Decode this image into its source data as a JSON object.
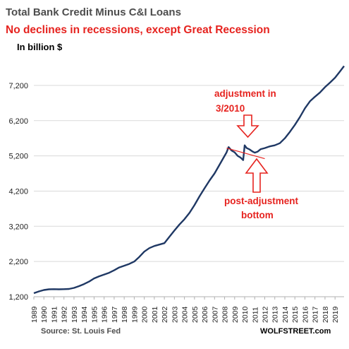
{
  "chart_data": {
    "type": "line",
    "title": "Total Bank Credit Minus C&I Loans",
    "subtitle": "No declines in recessions, except Great Recession",
    "units": "In billion $",
    "xlabel": "",
    "ylabel": "",
    "x_ticks": [
      "1989",
      "1990",
      "1991",
      "1992",
      "1993",
      "1994",
      "1995",
      "1996",
      "1997",
      "1998",
      "1999",
      "2000",
      "2001",
      "2002",
      "2003",
      "2004",
      "2005",
      "2006",
      "2007",
      "2008",
      "2009",
      "2010",
      "2011",
      "2012",
      "2013",
      "2014",
      "2015",
      "2016",
      "2017",
      "2018",
      "2019"
    ],
    "y_ticks": [
      1200,
      2200,
      3200,
      4200,
      5200,
      6200,
      7200
    ],
    "y_tick_labels": [
      "1,200",
      "2,200",
      "3,200",
      "4,200",
      "5,200",
      "6,200",
      "7,200"
    ],
    "ylim": [
      1200,
      7700
    ],
    "xlim": [
      1989,
      2019.9
    ],
    "grid": "horizontal",
    "series": [
      {
        "color": "#1f3864",
        "points": [
          [
            1989.0,
            1300
          ],
          [
            1989.5,
            1350
          ],
          [
            1990.0,
            1390
          ],
          [
            1990.5,
            1410
          ],
          [
            1991.0,
            1415
          ],
          [
            1991.5,
            1410
          ],
          [
            1992.0,
            1415
          ],
          [
            1992.5,
            1420
          ],
          [
            1993.0,
            1450
          ],
          [
            1993.5,
            1500
          ],
          [
            1994.0,
            1560
          ],
          [
            1994.5,
            1630
          ],
          [
            1995.0,
            1720
          ],
          [
            1995.5,
            1780
          ],
          [
            1996.0,
            1830
          ],
          [
            1996.5,
            1880
          ],
          [
            1997.0,
            1950
          ],
          [
            1997.5,
            2030
          ],
          [
            1998.0,
            2080
          ],
          [
            1998.5,
            2130
          ],
          [
            1999.0,
            2200
          ],
          [
            1999.5,
            2330
          ],
          [
            2000.0,
            2480
          ],
          [
            2000.5,
            2580
          ],
          [
            2001.0,
            2640
          ],
          [
            2001.5,
            2680
          ],
          [
            2002.0,
            2720
          ],
          [
            2002.5,
            2900
          ],
          [
            2003.0,
            3080
          ],
          [
            2003.5,
            3250
          ],
          [
            2004.0,
            3400
          ],
          [
            2004.5,
            3580
          ],
          [
            2005.0,
            3800
          ],
          [
            2005.5,
            4050
          ],
          [
            2006.0,
            4280
          ],
          [
            2006.5,
            4500
          ],
          [
            2007.0,
            4700
          ],
          [
            2007.5,
            4950
          ],
          [
            2007.9,
            5150
          ],
          [
            2008.2,
            5300
          ],
          [
            2008.4,
            5450
          ],
          [
            2008.7,
            5350
          ],
          [
            2009.0,
            5300
          ],
          [
            2009.3,
            5200
          ],
          [
            2009.6,
            5150
          ],
          [
            2009.85,
            5080
          ],
          [
            2010.0,
            5500
          ],
          [
            2010.2,
            5420
          ],
          [
            2010.5,
            5380
          ],
          [
            2010.8,
            5320
          ],
          [
            2011.0,
            5290
          ],
          [
            2011.3,
            5320
          ],
          [
            2011.6,
            5390
          ],
          [
            2012.0,
            5420
          ],
          [
            2012.5,
            5470
          ],
          [
            2013.0,
            5500
          ],
          [
            2013.5,
            5560
          ],
          [
            2014.0,
            5700
          ],
          [
            2014.5,
            5880
          ],
          [
            2015.0,
            6080
          ],
          [
            2015.5,
            6300
          ],
          [
            2016.0,
            6550
          ],
          [
            2016.5,
            6750
          ],
          [
            2017.0,
            6880
          ],
          [
            2017.5,
            7000
          ],
          [
            2018.0,
            7150
          ],
          [
            2018.5,
            7280
          ],
          [
            2019.0,
            7420
          ],
          [
            2019.5,
            7600
          ],
          [
            2019.9,
            7750
          ]
        ]
      }
    ],
    "trend_line": {
      "color": "#e6231f",
      "points": [
        [
          2008.2,
          5420
        ],
        [
          2012.0,
          5120
        ]
      ]
    },
    "annotations": [
      {
        "text_lines": [
          "adjustment in",
          "3/2010"
        ],
        "arrow": "down",
        "color": "#e6231f"
      },
      {
        "text_lines": [
          "post-adjustment",
          "bottom"
        ],
        "arrow": "up",
        "color": "#e6231f"
      }
    ],
    "source": "Source: St. Louis Fed",
    "brand": "WOLFSTREET.com"
  }
}
